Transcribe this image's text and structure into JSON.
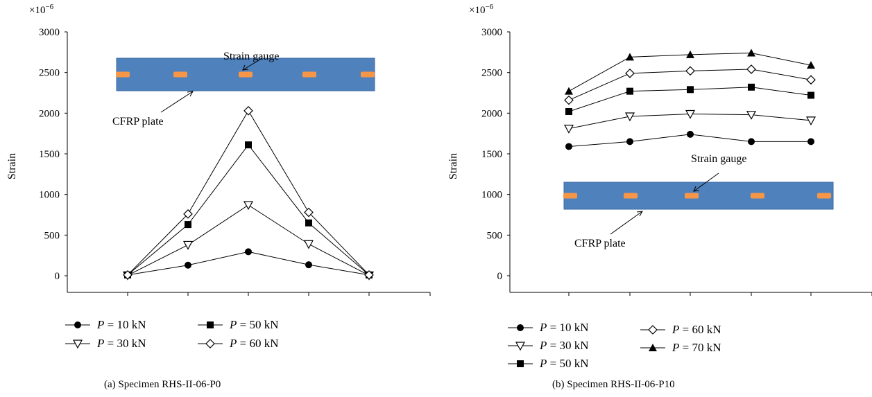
{
  "chart_data": [
    {
      "type": "line",
      "caption": "(a)  Specimen RHS-II-06-P0",
      "ylabel": "Strain",
      "y_multiplier_label": "×10",
      "y_multiplier_exp": "−6",
      "ylim": [
        0,
        3000
      ],
      "yticks": [
        0,
        500,
        1000,
        1500,
        2000,
        2500,
        3000
      ],
      "x": [
        1,
        2,
        3,
        4,
        5
      ],
      "series": [
        {
          "name": "P = 10 kN",
          "p_symbol": "P",
          "p_value": " = 10 kN",
          "marker": "circle-filled",
          "values": [
            10,
            130,
            295,
            135,
            10
          ]
        },
        {
          "name": "P = 30 kN",
          "p_symbol": "P",
          "p_value": " = 30 kN",
          "marker": "triangle-down-open",
          "values": [
            5,
            380,
            870,
            390,
            5
          ]
        },
        {
          "name": "P = 50 kN",
          "p_symbol": "P",
          "p_value": " = 50 kN",
          "marker": "square-filled",
          "values": [
            10,
            630,
            1610,
            650,
            10
          ]
        },
        {
          "name": "P = 60 kN",
          "p_symbol": "P",
          "p_value": " = 60 kN",
          "marker": "diamond-open",
          "values": [
            10,
            760,
            2030,
            780,
            10
          ]
        }
      ],
      "inset": {
        "gauge_label": "Strain gauge",
        "plate_label": "CFRP plate",
        "plate_color": "#4f81bd",
        "gauge_color": "#f79646"
      }
    },
    {
      "type": "line",
      "caption": "(b)  Specimen RHS-II-06-P10",
      "ylabel": "Strain",
      "y_multiplier_label": "×10",
      "y_multiplier_exp": "−6",
      "ylim": [
        0,
        3000
      ],
      "yticks": [
        0,
        500,
        1000,
        1500,
        2000,
        2500,
        3000
      ],
      "x": [
        1,
        2,
        3,
        4,
        5
      ],
      "series": [
        {
          "name": "P = 10 kN",
          "p_symbol": "P",
          "p_value": " = 10 kN",
          "marker": "circle-filled",
          "values": [
            1590,
            1650,
            1740,
            1650,
            1650
          ]
        },
        {
          "name": "P = 30 kN",
          "p_symbol": "P",
          "p_value": " = 30 kN",
          "marker": "triangle-down-open",
          "values": [
            1810,
            1960,
            1990,
            1980,
            1910
          ]
        },
        {
          "name": "P = 50 kN",
          "p_symbol": "P",
          "p_value": " = 50 kN",
          "marker": "square-filled",
          "values": [
            2020,
            2270,
            2290,
            2320,
            2220
          ]
        },
        {
          "name": "P = 60 kN",
          "p_symbol": "P",
          "p_value": " = 60 kN",
          "marker": "diamond-open",
          "values": [
            2160,
            2490,
            2520,
            2540,
            2410
          ]
        },
        {
          "name": "P = 70 kN",
          "p_symbol": "P",
          "p_value": " = 70 kN",
          "marker": "triangle-up-filled",
          "values": [
            2270,
            2690,
            2720,
            2740,
            2590
          ]
        }
      ],
      "inset": {
        "gauge_label": "Strain gauge",
        "plate_label": "CFRP plate",
        "plate_color": "#4f81bd",
        "gauge_color": "#f79646"
      }
    }
  ]
}
